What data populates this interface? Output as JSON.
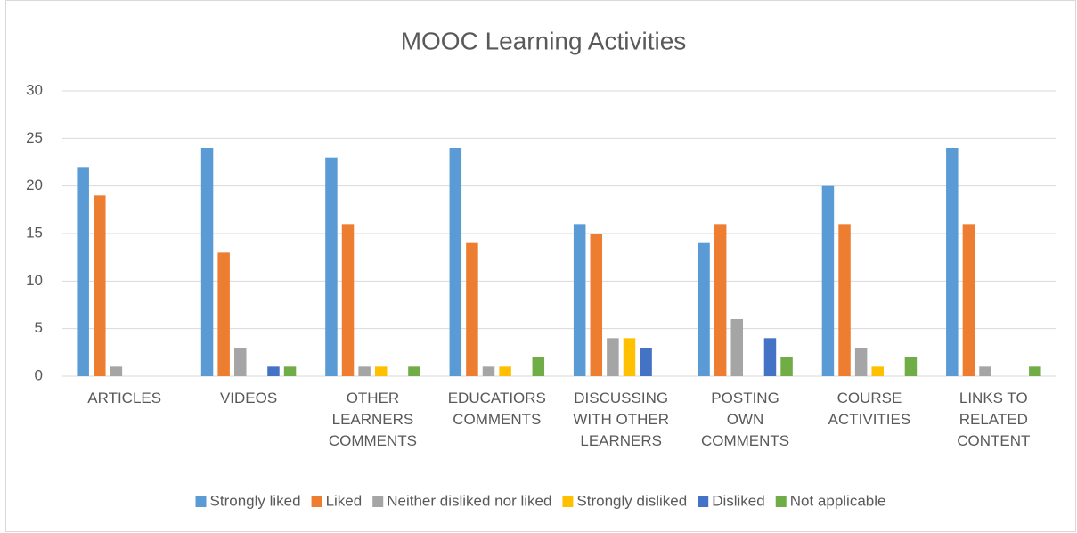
{
  "chart_data": {
    "type": "bar",
    "title": "MOOC Learning Activities",
    "categories": [
      "ARTICLES",
      "VIDEOS",
      "OTHER LEARNERS COMMENTS",
      "EDUCATIORS COMMENTS",
      "DISCUSSING WITH OTHER LEARNERS",
      "POSTING OWN COMMENTS",
      "COURSE ACTIVITIES",
      "LINKS TO RELATED CONTENT"
    ],
    "series": [
      {
        "name": "Strongly liked",
        "color": "#5b9bd5",
        "values": [
          22,
          24,
          23,
          24,
          16,
          14,
          20,
          24
        ]
      },
      {
        "name": "Liked",
        "color": "#ed7d31",
        "values": [
          19,
          13,
          16,
          14,
          15,
          16,
          16,
          16
        ]
      },
      {
        "name": "Neither disliked nor liked",
        "color": "#a5a5a5",
        "values": [
          1,
          3,
          1,
          1,
          4,
          6,
          3,
          1
        ]
      },
      {
        "name": "Strongly disliked",
        "color": "#ffc000",
        "values": [
          0,
          0,
          1,
          1,
          4,
          0,
          1,
          0
        ]
      },
      {
        "name": "Disliked",
        "color": "#4472c4",
        "values": [
          0,
          1,
          0,
          0,
          3,
          4,
          0,
          0
        ]
      },
      {
        "name": "Not applicable",
        "color": "#70ad47",
        "values": [
          0,
          1,
          1,
          2,
          0,
          2,
          2,
          1
        ]
      }
    ],
    "ylim": [
      0,
      30
    ],
    "yticks": [
      0,
      5,
      10,
      15,
      20,
      25,
      30
    ],
    "grid": true,
    "legend": "bottom"
  }
}
